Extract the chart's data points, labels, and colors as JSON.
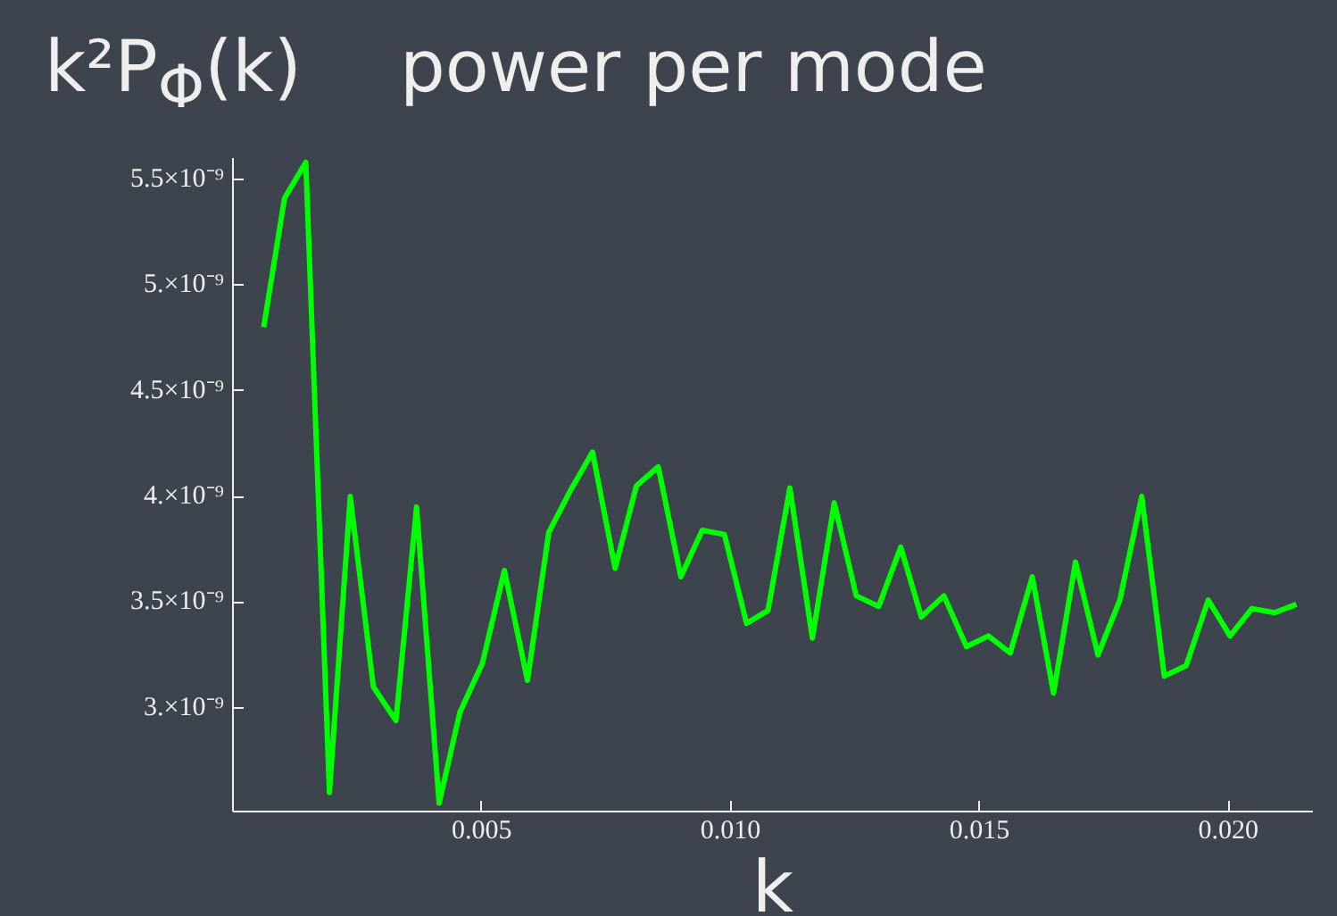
{
  "chart_data": {
    "type": "line",
    "title": "power per mode",
    "ylabel": "k²P$_{Φ}$(k)",
    "xlabel": "k",
    "x": [
      0.000618,
      0.001036,
      0.001464,
      0.001939,
      0.002357,
      0.002821,
      0.003275,
      0.003689,
      0.004143,
      0.004561,
      0.005011,
      0.005454,
      0.005918,
      0.006346,
      0.006786,
      0.007225,
      0.007679,
      0.008107,
      0.008546,
      0.009,
      0.009429,
      0.009875,
      0.010321,
      0.01075,
      0.01119,
      0.011643,
      0.012082,
      0.012525,
      0.012975,
      0.013418,
      0.013832,
      0.014286,
      0.014739,
      0.015179,
      0.015618,
      0.016061,
      0.016489,
      0.016929,
      0.017382,
      0.017821,
      0.018261,
      0.018714,
      0.019154,
      0.019596,
      0.020036,
      0.020475,
      0.020929,
      0.021368
    ],
    "series": [
      {
        "color": "#00ff00",
        "values": [
          4.8e-09,
          5.41e-09,
          5.58e-09,
          2.6e-09,
          4e-09,
          3.1e-09,
          2.94e-09,
          3.95e-09,
          2.55e-09,
          2.98e-09,
          3.21e-09,
          3.65e-09,
          3.13e-09,
          3.83e-09,
          4.03e-09,
          4.21e-09,
          3.66e-09,
          4.05e-09,
          4.14e-09,
          3.62e-09,
          3.84e-09,
          3.82e-09,
          3.4e-09,
          3.46e-09,
          4.04e-09,
          3.33e-09,
          3.97e-09,
          3.53e-09,
          3.48e-09,
          3.76e-09,
          3.43e-09,
          3.53e-09,
          3.29e-09,
          3.34e-09,
          3.26e-09,
          3.62e-09,
          3.07e-09,
          3.69e-09,
          3.25e-09,
          3.51e-09,
          4e-09,
          3.15e-09,
          3.2e-09,
          3.51e-09,
          3.34e-09,
          3.47e-09,
          3.45e-09,
          3.49e-09
        ]
      }
    ],
    "xlim": [
      0,
      0.0217
    ],
    "ylim": [
      2.51e-09,
      5.6e-09
    ],
    "xticks": [
      {
        "value": 0.005,
        "label": "0.005"
      },
      {
        "value": 0.01,
        "label": "0.010"
      },
      {
        "value": 0.015,
        "label": "0.015"
      },
      {
        "value": 0.02,
        "label": "0.020"
      }
    ],
    "yticks": [
      {
        "value": 3e-09,
        "label": "3.×10⁻⁹"
      },
      {
        "value": 3.5e-09,
        "label": "3.5×10⁻⁹"
      },
      {
        "value": 4e-09,
        "label": "4.×10⁻⁹"
      },
      {
        "value": 4.5e-09,
        "label": "4.5×10⁻⁹"
      },
      {
        "value": 5e-09,
        "label": "5.×10⁻⁹"
      },
      {
        "value": 5.5e-09,
        "label": "5.5×10⁻⁹"
      }
    ],
    "grid": false,
    "marker": "none",
    "line_style": "solid"
  }
}
